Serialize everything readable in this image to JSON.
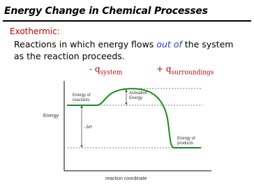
{
  "header": {
    "title": "Energy Change in Chemical Processes"
  },
  "subheading": "Exothermic:",
  "body": {
    "before": "Reactions in which energy flows ",
    "emphasis": "out of",
    "after": " the system  as the reaction proceeds."
  },
  "terms": [
    {
      "sign": "- q",
      "subscript": "system"
    },
    {
      "sign": "+ q",
      "subscript": "surroundings"
    }
  ],
  "diagram": {
    "reactants_label": [
      "Energy of",
      "reactants"
    ],
    "activation_label": [
      "Activation",
      "Energy"
    ],
    "y_axis_label": "Energy",
    "delta_label": "- ΔH",
    "products_label": [
      "Energy of",
      "products"
    ],
    "x_axis_label": "reaction coordinate"
  }
}
